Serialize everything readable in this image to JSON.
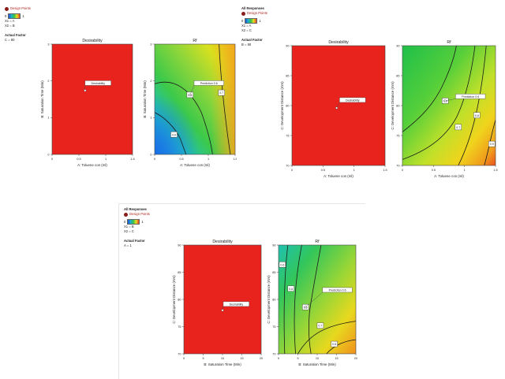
{
  "panels": [
    {
      "legend": {
        "header": "",
        "design_points_label": "Design Points",
        "colorbar_low": "0",
        "colorbar_high": "1",
        "x1": "X1 = A",
        "x2": "X2 = B",
        "actual_factor_header": "Actual Factor",
        "actual_factor_value": "C = 80"
      }
    },
    {
      "legend": {
        "header": "All Responses",
        "design_points_label": "Design Points",
        "colorbar_low": "0",
        "colorbar_high": "1",
        "x1": "X1 = A",
        "x2": "X2 = C",
        "actual_factor_header": "Actual Factor",
        "actual_factor_value": "B = 90"
      }
    },
    {
      "legend": {
        "header": "All Responses",
        "design_points_label": "Design Points",
        "colorbar_low": "0",
        "colorbar_high": "1",
        "x1": "X1 = B",
        "x2": "X2 = C",
        "actual_factor_header": "Actual Factor",
        "actual_factor_value": "A = 1"
      }
    }
  ],
  "chart_data": [
    {
      "type": "heatmap",
      "title": "Desirability",
      "xlabel": "A: Toluene con (ml)",
      "ylabel": "B: Saturation Time (Min)",
      "xticks": [
        "0",
        "0.5",
        "1",
        "1.5"
      ],
      "yticks": [
        "0",
        "1",
        "2",
        "3"
      ],
      "fill_color": "#e8231e",
      "label": "Desirability"
    },
    {
      "type": "heatmap",
      "title": "Rf",
      "xlabel": "A: Toluene con (ml)",
      "ylabel": "B: Saturation Time (Min)",
      "xticks": [
        "0",
        "0.5",
        "1",
        "1.5"
      ],
      "yticks": [
        "0",
        "1",
        "2",
        "3"
      ],
      "contour_labels": [
        "0.5",
        "0.6",
        "0.7"
      ],
      "prediction_label": "Prediction 0.6"
    },
    {
      "type": "heatmap",
      "title": "Desirability",
      "xlabel": "A: Toluene con (ml)",
      "ylabel": "C: Development Distance (mm)",
      "xticks": [
        "0",
        "0.5",
        "1",
        "1.5"
      ],
      "yticks": [
        "70",
        "75",
        "80",
        "85",
        "90"
      ],
      "fill_color": "#e8231e",
      "label": "Desirability"
    },
    {
      "type": "heatmap",
      "title": "Rf",
      "xlabel": "A: Toluene con (ml)",
      "ylabel": "C: Development Distance (mm)",
      "xticks": [
        "0",
        "0.5",
        "1",
        "1.5"
      ],
      "yticks": [
        "70",
        "75",
        "80",
        "85",
        "90"
      ],
      "contour_labels": [
        "0.6",
        "0.7",
        "0.8",
        "0.9"
      ],
      "prediction_label": "Prediction 0.6"
    },
    {
      "type": "heatmap",
      "title": "Desirability",
      "xlabel": "B: Saturation Time (Min)",
      "ylabel": "C: Development Distance (mm)",
      "xticks": [
        "0",
        "5",
        "10",
        "15",
        "20"
      ],
      "yticks": [
        "70",
        "75",
        "80",
        "85",
        "90"
      ],
      "fill_color": "#e8231e",
      "label": "Desirability"
    },
    {
      "type": "heatmap",
      "title": "Rf",
      "xlabel": "B: Saturation Time (Min)",
      "ylabel": "C: Development Distance (mm)",
      "xticks": [
        "0",
        "5",
        "10",
        "15",
        "20"
      ],
      "yticks": [
        "70",
        "75",
        "80",
        "85",
        "90"
      ],
      "contour_labels": [
        "0.6",
        "0.6",
        "0.6",
        "0.7",
        "0.8"
      ],
      "prediction_label": "Prediction 0.6"
    }
  ]
}
